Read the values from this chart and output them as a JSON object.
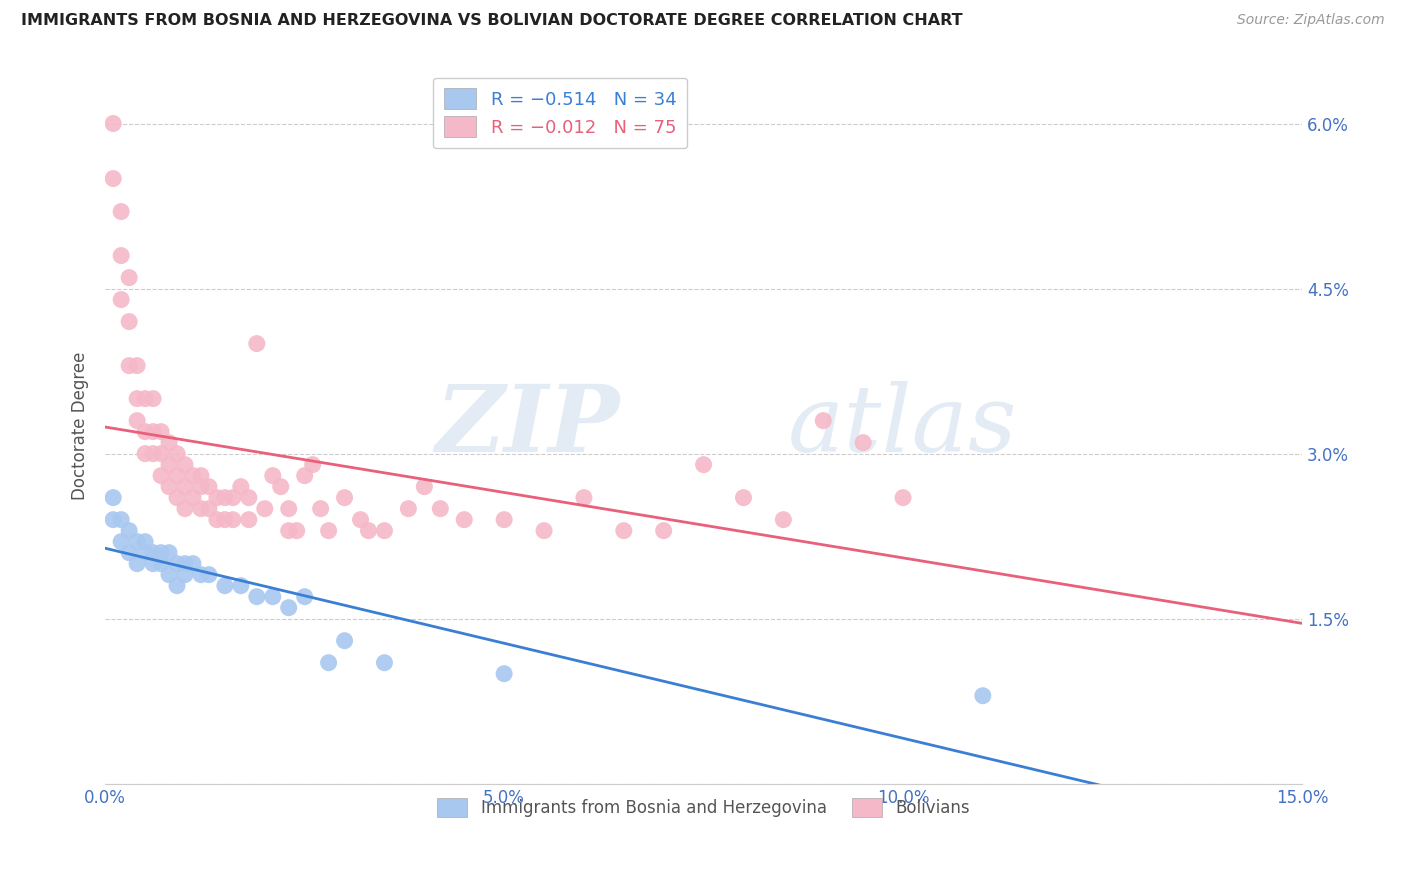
{
  "title": "IMMIGRANTS FROM BOSNIA AND HERZEGOVINA VS BOLIVIAN DOCTORATE DEGREE CORRELATION CHART",
  "source": "Source: ZipAtlas.com",
  "ylabel": "Doctorate Degree",
  "xlim": [
    0.0,
    0.15
  ],
  "ylim": [
    0.0,
    0.065
  ],
  "yticks": [
    0.0,
    0.015,
    0.03,
    0.045,
    0.06
  ],
  "ytick_labels_right": [
    "",
    "1.5%",
    "3.0%",
    "4.5%",
    "6.0%"
  ],
  "xticks": [
    0.0,
    0.05,
    0.1,
    0.15
  ],
  "xtick_labels": [
    "0.0%",
    "5.0%",
    "10.0%",
    "15.0%"
  ],
  "blue_color": "#a8c8f0",
  "pink_color": "#f5b8c8",
  "blue_line_color": "#3a7fd4",
  "pink_line_color": "#e8607a",
  "legend_blue_label": "R = −0.514   N = 34",
  "legend_pink_label": "R = −0.012   N = 75",
  "legend_blue_series": "Immigrants from Bosnia and Herzegovina",
  "legend_pink_series": "Bolivians",
  "watermark_zip": "ZIP",
  "watermark_atlas": "atlas",
  "blue_x": [
    0.001,
    0.001,
    0.002,
    0.002,
    0.003,
    0.003,
    0.004,
    0.004,
    0.005,
    0.005,
    0.006,
    0.006,
    0.007,
    0.007,
    0.008,
    0.008,
    0.009,
    0.009,
    0.01,
    0.01,
    0.011,
    0.012,
    0.013,
    0.015,
    0.017,
    0.019,
    0.021,
    0.023,
    0.025,
    0.028,
    0.03,
    0.035,
    0.05,
    0.11
  ],
  "blue_y": [
    0.026,
    0.024,
    0.024,
    0.022,
    0.023,
    0.021,
    0.022,
    0.02,
    0.022,
    0.021,
    0.021,
    0.02,
    0.021,
    0.02,
    0.021,
    0.019,
    0.02,
    0.018,
    0.02,
    0.019,
    0.02,
    0.019,
    0.019,
    0.018,
    0.018,
    0.017,
    0.017,
    0.016,
    0.017,
    0.011,
    0.013,
    0.011,
    0.01,
    0.008
  ],
  "pink_x": [
    0.001,
    0.001,
    0.002,
    0.002,
    0.002,
    0.003,
    0.003,
    0.003,
    0.004,
    0.004,
    0.004,
    0.005,
    0.005,
    0.005,
    0.006,
    0.006,
    0.006,
    0.007,
    0.007,
    0.007,
    0.008,
    0.008,
    0.008,
    0.009,
    0.009,
    0.009,
    0.01,
    0.01,
    0.01,
    0.011,
    0.011,
    0.012,
    0.012,
    0.012,
    0.013,
    0.013,
    0.014,
    0.014,
    0.015,
    0.015,
    0.016,
    0.016,
    0.017,
    0.018,
    0.018,
    0.019,
    0.02,
    0.021,
    0.022,
    0.023,
    0.023,
    0.024,
    0.025,
    0.026,
    0.027,
    0.028,
    0.03,
    0.032,
    0.033,
    0.035,
    0.038,
    0.04,
    0.042,
    0.045,
    0.05,
    0.055,
    0.06,
    0.065,
    0.07,
    0.075,
    0.08,
    0.085,
    0.09,
    0.095,
    0.1
  ],
  "pink_y": [
    0.06,
    0.055,
    0.052,
    0.048,
    0.044,
    0.046,
    0.042,
    0.038,
    0.038,
    0.035,
    0.033,
    0.035,
    0.032,
    0.03,
    0.035,
    0.032,
    0.03,
    0.032,
    0.03,
    0.028,
    0.031,
    0.029,
    0.027,
    0.03,
    0.028,
    0.026,
    0.029,
    0.027,
    0.025,
    0.028,
    0.026,
    0.028,
    0.027,
    0.025,
    0.027,
    0.025,
    0.026,
    0.024,
    0.026,
    0.024,
    0.026,
    0.024,
    0.027,
    0.026,
    0.024,
    0.04,
    0.025,
    0.028,
    0.027,
    0.025,
    0.023,
    0.023,
    0.028,
    0.029,
    0.025,
    0.023,
    0.026,
    0.024,
    0.023,
    0.023,
    0.025,
    0.027,
    0.025,
    0.024,
    0.024,
    0.023,
    0.026,
    0.023,
    0.023,
    0.029,
    0.026,
    0.024,
    0.033,
    0.031,
    0.026
  ]
}
